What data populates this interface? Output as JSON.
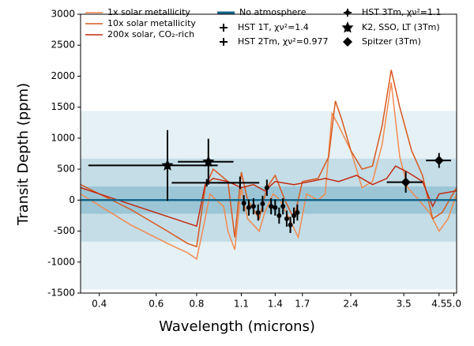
{
  "chart_data": {
    "type": "line",
    "xlabel": "Wavelength (microns)",
    "ylabel": "Transit Depth (ppm)",
    "xscale": "log",
    "xlim": [
      0.35,
      5.1
    ],
    "ylim": [
      -1500,
      3000
    ],
    "xticks": [
      0.4,
      0.6,
      0.8,
      1.1,
      1.4,
      1.7,
      2.4,
      3.5,
      4.5,
      {
        "value": 5,
        "label": "5.0"
      }
    ],
    "yticks": [
      -1500,
      -1000,
      -500,
      0,
      500,
      1000,
      1500,
      2000,
      2500,
      3000
    ],
    "bands": [
      {
        "halfwidth": 1440,
        "color": "#e6f1f5"
      },
      {
        "halfwidth": 670,
        "color": "#c4dde7"
      },
      {
        "halfwidth": 220,
        "color": "#9cc6d6"
      }
    ],
    "series": [
      {
        "name": "1x solar metallicity",
        "color": "#f28a4e",
        "x": [
          0.35,
          0.5,
          0.65,
          0.75,
          0.8,
          0.85,
          0.88,
          0.92,
          0.97,
          1.0,
          1.05,
          1.1,
          1.15,
          1.25,
          1.3,
          1.38,
          1.45,
          1.55,
          1.65,
          1.75,
          1.9,
          2.0,
          2.1,
          2.2,
          2.4,
          2.6,
          2.8,
          3.0,
          3.2,
          3.4,
          3.6,
          3.9,
          4.2,
          4.5,
          4.8,
          5.1
        ],
        "values": [
          100,
          -400,
          -700,
          -850,
          -950,
          -300,
          100,
          0,
          -100,
          -500,
          -800,
          200,
          -300,
          -500,
          -200,
          100,
          0,
          -300,
          -600,
          100,
          0,
          100,
          1400,
          1200,
          800,
          200,
          300,
          900,
          1900,
          700,
          200,
          0,
          -200,
          -500,
          -300,
          100
        ]
      },
      {
        "name": "10x solar metallicity",
        "color": "#d9581e",
        "x": [
          0.35,
          0.5,
          0.65,
          0.75,
          0.8,
          0.85,
          0.9,
          0.95,
          1.0,
          1.05,
          1.1,
          1.15,
          1.25,
          1.32,
          1.4,
          1.5,
          1.6,
          1.7,
          1.9,
          2.05,
          2.15,
          2.25,
          2.4,
          2.6,
          2.8,
          3.0,
          3.2,
          3.4,
          3.7,
          4.0,
          4.3,
          4.6,
          5.1
        ],
        "values": [
          250,
          -150,
          -500,
          -700,
          -750,
          200,
          500,
          400,
          300,
          -600,
          450,
          0,
          -300,
          200,
          400,
          0,
          -300,
          300,
          350,
          700,
          1600,
          1300,
          800,
          500,
          550,
          1200,
          2100,
          1500,
          800,
          400,
          -300,
          -200,
          200
        ]
      },
      {
        "name": "200x solar, CO₂-rich",
        "color": "#c22a10",
        "x": [
          0.35,
          0.8,
          0.85,
          0.9,
          1.0,
          1.1,
          1.2,
          1.3,
          1.4,
          1.6,
          1.8,
          2.0,
          2.2,
          2.5,
          2.8,
          3.1,
          3.3,
          3.6,
          4.0,
          4.3,
          4.5,
          5.1
        ],
        "values": [
          200,
          -420,
          250,
          350,
          300,
          200,
          250,
          150,
          300,
          250,
          300,
          350,
          300,
          400,
          250,
          350,
          550,
          450,
          300,
          -100,
          100,
          150
        ]
      },
      {
        "name": "No atmosphere",
        "color": "#17678a",
        "x": [
          0.35,
          5.1
        ],
        "values": [
          0,
          0
        ]
      }
    ],
    "points": [
      {
        "name": "HST 1T, χν²=1.4",
        "marker": "plus",
        "x": [
          1.09
        ],
        "values": [
          280
        ],
        "xerr": [
          0.16
        ],
        "yerr": [
          100
        ]
      },
      {
        "name": "HST 2Tm, χν²=0.977",
        "marker": "plus",
        "x": [
          0.86
        ],
        "values": [
          280
        ],
        "xerr": [
          0.19
        ],
        "yerr": [
          60
        ]
      },
      {
        "name": "HST 3Tm, χν²=1.1",
        "marker": "dot",
        "x": [
          1.12,
          1.16,
          1.2,
          1.24,
          1.28,
          1.32,
          1.36,
          1.4,
          1.44,
          1.48,
          1.52,
          1.56,
          1.6,
          1.64
        ],
        "values": [
          -50,
          -120,
          -100,
          -200,
          -60,
          200,
          -100,
          -120,
          -250,
          -100,
          -300,
          -400,
          -250,
          -200
        ],
        "xerr": [
          0.015,
          0.015,
          0.015,
          0.015,
          0.015,
          0.015,
          0.015,
          0.015,
          0.015,
          0.015,
          0.015,
          0.015,
          0.015,
          0.015
        ],
        "yerr": [
          130,
          130,
          130,
          130,
          130,
          130,
          130,
          130,
          130,
          130,
          130,
          130,
          130,
          130
        ]
      },
      {
        "name": "K2, SSO, LT (3Tm)",
        "marker": "star",
        "x": [
          0.65,
          0.87
        ],
        "values": [
          560,
          620
        ],
        "xerr": [
          0.28,
          0.17
        ],
        "yerr": [
          570,
          370
        ]
      },
      {
        "name": "Spitzer (3Tm)",
        "marker": "diamond",
        "x": [
          3.55,
          4.5
        ],
        "values": [
          290,
          640
        ],
        "xerr": [
          0.45,
          0.4
        ],
        "yerr": [
          170,
          120
        ]
      }
    ]
  }
}
